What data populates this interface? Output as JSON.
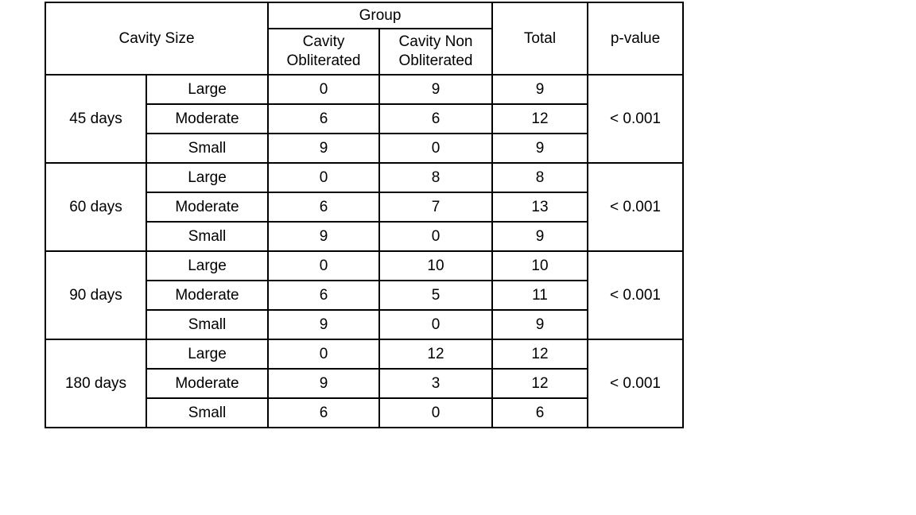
{
  "table": {
    "header": {
      "cavity_size": "Cavity Size",
      "group": "Group",
      "group_columns": [
        "Cavity Obliterated",
        "Cavity Non Obliterated"
      ],
      "total": "Total",
      "p_value": "p-value"
    },
    "groups": [
      {
        "period": "45 days",
        "p_value": "< 0.001",
        "rows": [
          {
            "size": "Large",
            "obliterated": "0",
            "non_obliterated": "9",
            "total": "9"
          },
          {
            "size": "Moderate",
            "obliterated": "6",
            "non_obliterated": "6",
            "total": "12"
          },
          {
            "size": "Small",
            "obliterated": "9",
            "non_obliterated": "0",
            "total": "9"
          }
        ]
      },
      {
        "period": "60 days",
        "p_value": "< 0.001",
        "rows": [
          {
            "size": "Large",
            "obliterated": "0",
            "non_obliterated": "8",
            "total": "8"
          },
          {
            "size": "Moderate",
            "obliterated": "6",
            "non_obliterated": "7",
            "total": "13"
          },
          {
            "size": "Small",
            "obliterated": "9",
            "non_obliterated": "0",
            "total": "9"
          }
        ]
      },
      {
        "period": "90 days",
        "p_value": "< 0.001",
        "rows": [
          {
            "size": "Large",
            "obliterated": "0",
            "non_obliterated": "10",
            "total": "10"
          },
          {
            "size": "Moderate",
            "obliterated": "6",
            "non_obliterated": "5",
            "total": "11"
          },
          {
            "size": "Small",
            "obliterated": "9",
            "non_obliterated": "0",
            "total": "9"
          }
        ]
      },
      {
        "period": "180 days",
        "p_value": "< 0.001",
        "rows": [
          {
            "size": "Large",
            "obliterated": "0",
            "non_obliterated": "12",
            "total": "12"
          },
          {
            "size": "Moderate",
            "obliterated": "9",
            "non_obliterated": "3",
            "total": "12"
          },
          {
            "size": "Small",
            "obliterated": "6",
            "non_obliterated": "0",
            "total": "6"
          }
        ]
      }
    ]
  },
  "chart_data": {
    "type": "table",
    "columns": [
      "Cavity Size",
      "Cavity Size (category)",
      "Group: Cavity Obliterated",
      "Group: Cavity Non Obliterated",
      "Total",
      "p-value"
    ],
    "rows": [
      [
        "45 days",
        "Large",
        0,
        9,
        9,
        "< 0.001"
      ],
      [
        "45 days",
        "Moderate",
        6,
        6,
        12,
        "< 0.001"
      ],
      [
        "45 days",
        "Small",
        9,
        0,
        9,
        "< 0.001"
      ],
      [
        "60 days",
        "Large",
        0,
        8,
        8,
        "< 0.001"
      ],
      [
        "60 days",
        "Moderate",
        6,
        7,
        13,
        "< 0.001"
      ],
      [
        "60 days",
        "Small",
        9,
        0,
        9,
        "< 0.001"
      ],
      [
        "90 days",
        "Large",
        0,
        10,
        10,
        "< 0.001"
      ],
      [
        "90 days",
        "Moderate",
        6,
        5,
        11,
        "< 0.001"
      ],
      [
        "90 days",
        "Small",
        9,
        0,
        9,
        "< 0.001"
      ],
      [
        "180 days",
        "Large",
        0,
        12,
        12,
        "< 0.001"
      ],
      [
        "180 days",
        "Moderate",
        9,
        3,
        12,
        "< 0.001"
      ],
      [
        "180 days",
        "Small",
        6,
        0,
        6,
        "< 0.001"
      ]
    ]
  }
}
